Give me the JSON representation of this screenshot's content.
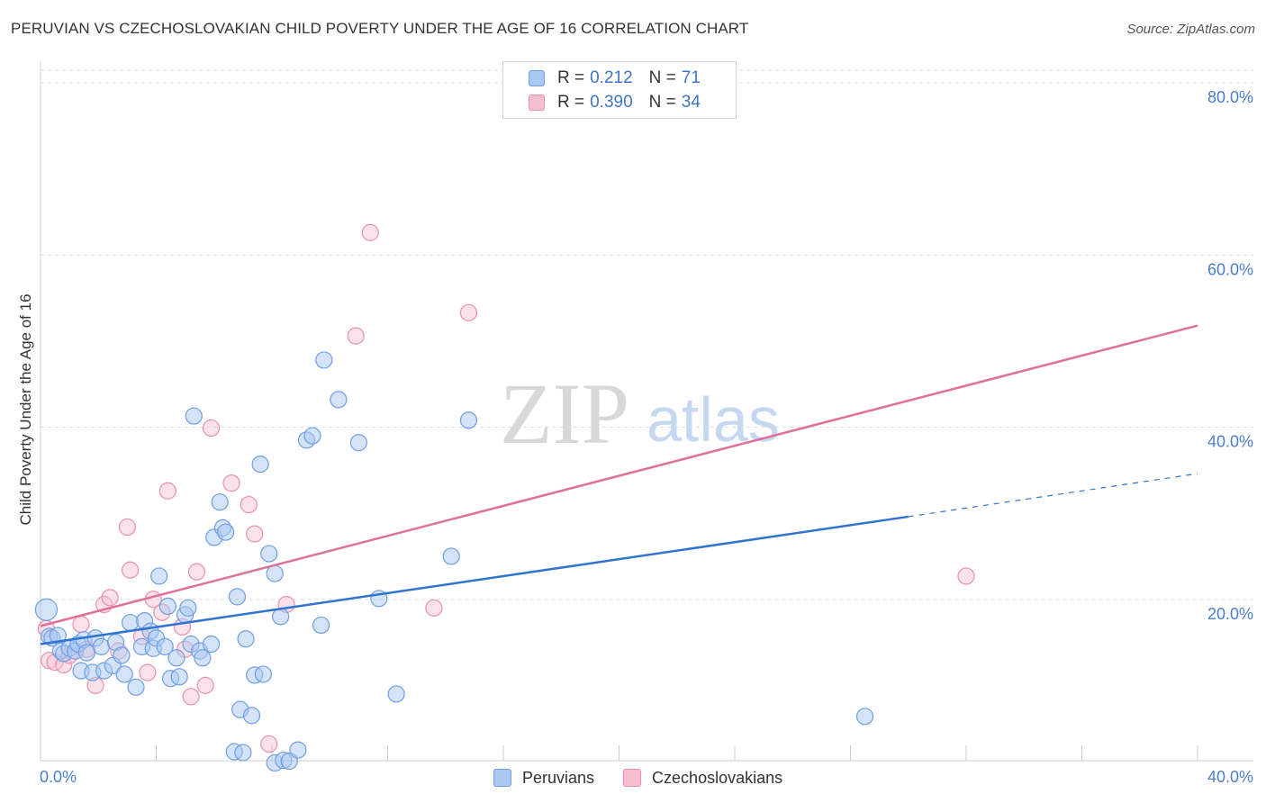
{
  "title": "PERUVIAN VS CZECHOSLOVAKIAN CHILD POVERTY UNDER THE AGE OF 16 CORRELATION CHART",
  "source": "Source: ZipAtlas.com",
  "watermark": {
    "zip": "ZIP",
    "atlas": "atlas"
  },
  "colors": {
    "peruvian_fill": "#a9c8f2",
    "peruvian_stroke": "#6f9fe0",
    "peruvian_line": "#2f74d0",
    "czech_fill": "#f6bfd0",
    "czech_stroke": "#ea8fae",
    "czech_line": "#e0709a",
    "grid": "#dddddd",
    "tick_text": "#4a7fd0"
  },
  "legend": {
    "peruvians": {
      "r_label": "R =",
      "r_value": "0.212",
      "n_label": "N =",
      "n_value": "71"
    },
    "czechoslovakians": {
      "r_label": "R =",
      "r_value": "0.390",
      "n_label": "N =",
      "n_value": "34"
    }
  },
  "bottom_legend": {
    "peruvians": "Peruvians",
    "czechoslovakians": "Czechoslovakians"
  },
  "chart_data": {
    "type": "scatter",
    "title": "PERUVIAN VS CZECHOSLOVAKIAN CHILD POVERTY UNDER THE AGE OF 16 CORRELATION CHART",
    "xlabel": "",
    "ylabel": "Child Poverty Under the Age of 16",
    "xlim": [
      0,
      40
    ],
    "ylim": [
      0,
      80
    ],
    "x_tick_labels": [
      "0.0%",
      "40.0%"
    ],
    "y_tick_labels": [
      "20.0%",
      "40.0%",
      "60.0%",
      "80.0%"
    ],
    "y_ticks": [
      20,
      40,
      60,
      80
    ],
    "grid": true,
    "series": [
      {
        "name": "Peruvians",
        "points": [
          [
            0.2,
            18.8
          ],
          [
            0.3,
            15.7
          ],
          [
            0.4,
            15.5
          ],
          [
            0.6,
            15.8
          ],
          [
            0.7,
            14.0
          ],
          [
            0.8,
            13.7
          ],
          [
            1.0,
            14.3
          ],
          [
            1.2,
            14.0
          ],
          [
            1.3,
            14.8
          ],
          [
            1.4,
            11.7
          ],
          [
            1.5,
            15.3
          ],
          [
            1.6,
            13.8
          ],
          [
            1.8,
            11.5
          ],
          [
            1.9,
            15.5
          ],
          [
            2.1,
            14.5
          ],
          [
            2.2,
            11.7
          ],
          [
            2.5,
            12.3
          ],
          [
            2.6,
            15.0
          ],
          [
            2.8,
            13.5
          ],
          [
            2.9,
            11.3
          ],
          [
            3.1,
            17.3
          ],
          [
            3.3,
            9.8
          ],
          [
            3.5,
            14.5
          ],
          [
            3.6,
            17.5
          ],
          [
            3.8,
            16.3
          ],
          [
            3.9,
            14.3
          ],
          [
            4.0,
            15.5
          ],
          [
            4.1,
            22.7
          ],
          [
            4.3,
            14.5
          ],
          [
            4.4,
            19.2
          ],
          [
            4.5,
            10.8
          ],
          [
            4.7,
            13.2
          ],
          [
            4.8,
            11.0
          ],
          [
            5.0,
            18.2
          ],
          [
            5.1,
            19.0
          ],
          [
            5.2,
            14.8
          ],
          [
            5.3,
            41.3
          ],
          [
            5.5,
            14.0
          ],
          [
            5.6,
            13.2
          ],
          [
            5.9,
            14.8
          ],
          [
            6.0,
            27.2
          ],
          [
            6.2,
            31.3
          ],
          [
            6.3,
            28.3
          ],
          [
            6.4,
            27.8
          ],
          [
            6.7,
            2.3
          ],
          [
            6.8,
            20.3
          ],
          [
            6.9,
            7.2
          ],
          [
            7.0,
            2.2
          ],
          [
            7.1,
            15.4
          ],
          [
            7.3,
            6.5
          ],
          [
            7.4,
            11.2
          ],
          [
            7.6,
            35.7
          ],
          [
            7.7,
            11.3
          ],
          [
            7.9,
            25.3
          ],
          [
            8.1,
            23.0
          ],
          [
            8.1,
            1.0
          ],
          [
            8.3,
            18.0
          ],
          [
            8.4,
            1.3
          ],
          [
            8.6,
            1.2
          ],
          [
            8.9,
            2.5
          ],
          [
            9.2,
            38.5
          ],
          [
            9.4,
            39.0
          ],
          [
            9.7,
            17.0
          ],
          [
            9.8,
            47.8
          ],
          [
            10.3,
            43.2
          ],
          [
            11.0,
            38.2
          ],
          [
            11.7,
            20.1
          ],
          [
            12.3,
            9.0
          ],
          [
            14.2,
            25.0
          ],
          [
            14.8,
            40.8
          ],
          [
            28.5,
            6.4
          ]
        ],
        "trend": {
          "x_start": 0,
          "y_start": 14.8,
          "x_solid_end": 30,
          "y_solid_end": 29.6,
          "x_dash_end": 40,
          "y_dash_end": 34.6
        }
      },
      {
        "name": "Czechoslovakians",
        "points": [
          [
            0.2,
            16.6
          ],
          [
            0.3,
            12.9
          ],
          [
            0.5,
            12.7
          ],
          [
            0.8,
            12.4
          ],
          [
            1.0,
            13.5
          ],
          [
            1.4,
            17.1
          ],
          [
            1.6,
            14.2
          ],
          [
            1.9,
            10.0
          ],
          [
            2.2,
            19.4
          ],
          [
            2.4,
            20.2
          ],
          [
            2.7,
            14.0
          ],
          [
            3.0,
            28.4
          ],
          [
            3.1,
            23.4
          ],
          [
            3.5,
            15.7
          ],
          [
            3.7,
            11.5
          ],
          [
            3.9,
            20.0
          ],
          [
            4.2,
            18.5
          ],
          [
            4.4,
            32.6
          ],
          [
            4.9,
            16.8
          ],
          [
            5.0,
            14.2
          ],
          [
            5.2,
            8.7
          ],
          [
            5.4,
            23.2
          ],
          [
            5.7,
            10.0
          ],
          [
            5.9,
            39.9
          ],
          [
            6.6,
            33.5
          ],
          [
            7.2,
            31.0
          ],
          [
            7.4,
            27.6
          ],
          [
            7.9,
            3.2
          ],
          [
            8.5,
            19.4
          ],
          [
            10.9,
            50.6
          ],
          [
            11.4,
            62.6
          ],
          [
            13.6,
            19.0
          ],
          [
            14.8,
            53.3
          ],
          [
            32.0,
            22.7
          ]
        ],
        "trend": {
          "x_start": 0,
          "y_start": 16.9,
          "x_end": 40,
          "y_end": 51.8
        }
      }
    ]
  }
}
